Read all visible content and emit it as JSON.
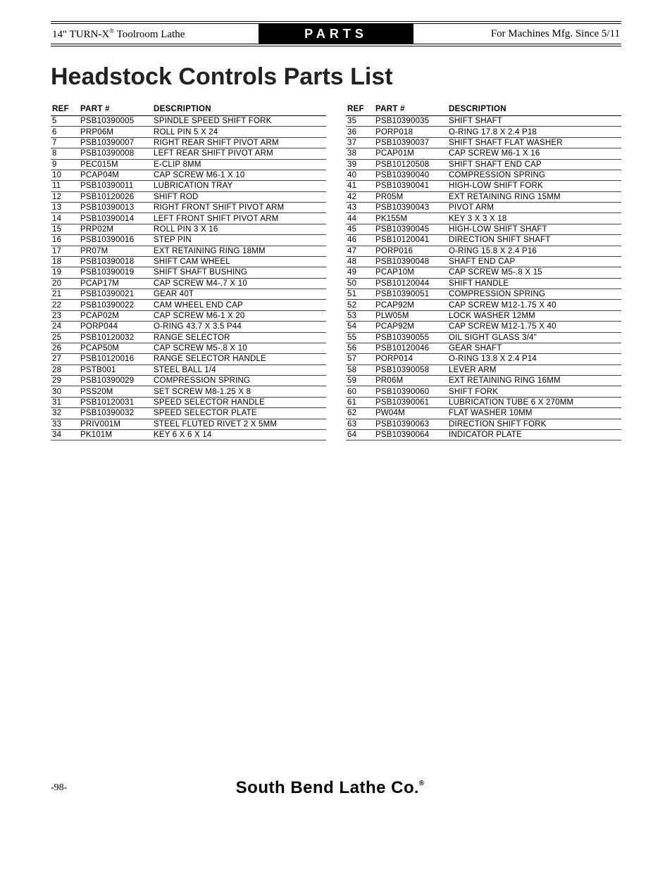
{
  "header": {
    "left_html": "14\" TURN-X<sup>®</sup> Toolroom Lathe",
    "center": "PARTS",
    "right": "For Machines Mfg. Since 5/11"
  },
  "title": "Headstock Controls Parts List",
  "columns": {
    "ref": "REF",
    "part": "PART #",
    "desc": "DESCRIPTION"
  },
  "left_rows": [
    [
      "5",
      "PSB10390005",
      "SPINDLE SPEED SHIFT FORK"
    ],
    [
      "6",
      "PRP06M",
      "ROLL PIN 5 X 24"
    ],
    [
      "7",
      "PSB10390007",
      "RIGHT REAR SHIFT PIVOT ARM"
    ],
    [
      "8",
      "PSB10390008",
      "LEFT REAR SHIFT PIVOT ARM"
    ],
    [
      "9",
      "PEC015M",
      "E-CLIP 8MM"
    ],
    [
      "10",
      "PCAP04M",
      "CAP SCREW M6-1 X 10"
    ],
    [
      "11",
      "PSB10390011",
      "LUBRICATION TRAY"
    ],
    [
      "12",
      "PSB10120026",
      "SHIFT ROD"
    ],
    [
      "13",
      "PSB10390013",
      "RIGHT FRONT SHIFT PIVOT ARM"
    ],
    [
      "14",
      "PSB10390014",
      "LEFT FRONT SHIFT PIVOT ARM"
    ],
    [
      "15",
      "PRP02M",
      "ROLL PIN 3 X 16"
    ],
    [
      "16",
      "PSB10390016",
      "STEP PIN"
    ],
    [
      "17",
      "PR07M",
      "EXT RETAINING RING 18MM"
    ],
    [
      "18",
      "PSB10390018",
      "SHIFT CAM WHEEL"
    ],
    [
      "19",
      "PSB10390019",
      "SHIFT SHAFT BUSHING"
    ],
    [
      "20",
      "PCAP17M",
      "CAP SCREW M4-.7 X 10"
    ],
    [
      "21",
      "PSB10390021",
      "GEAR 40T"
    ],
    [
      "22",
      "PSB10390022",
      "CAM WHEEL END CAP"
    ],
    [
      "23",
      "PCAP02M",
      "CAP SCREW M6-1 X 20"
    ],
    [
      "24",
      "PORP044",
      "O-RING 43.7 X 3.5 P44"
    ],
    [
      "25",
      "PSB10120032",
      "RANGE SELECTOR"
    ],
    [
      "26",
      "PCAP50M",
      "CAP SCREW M5-.8 X 10"
    ],
    [
      "27",
      "PSB10120016",
      "RANGE SELECTOR HANDLE"
    ],
    [
      "28",
      "PSTB001",
      "STEEL BALL 1/4"
    ],
    [
      "29",
      "PSB10390029",
      "COMPRESSION SPRING"
    ],
    [
      "30",
      "PSS20M",
      "SET SCREW M8-1.25 X 8"
    ],
    [
      "31",
      "PSB10120031",
      "SPEED SELECTOR HANDLE"
    ],
    [
      "32",
      "PSB10390032",
      "SPEED SELECTOR PLATE"
    ],
    [
      "33",
      "PRIV001M",
      "STEEL FLUTED RIVET 2 X 5MM"
    ],
    [
      "34",
      "PK101M",
      "KEY 6 X 6 X 14"
    ]
  ],
  "right_rows": [
    [
      "35",
      "PSB10390035",
      "SHIFT SHAFT"
    ],
    [
      "36",
      "PORP018",
      "O-RING 17.8 X 2.4 P18"
    ],
    [
      "37",
      "PSB10390037",
      "SHIFT SHAFT FLAT WASHER"
    ],
    [
      "38",
      "PCAP01M",
      "CAP SCREW M6-1 X 16"
    ],
    [
      "39",
      "PSB10120508",
      "SHIFT SHAFT END CAP"
    ],
    [
      "40",
      "PSB10390040",
      "COMPRESSION SPRING"
    ],
    [
      "41",
      "PSB10390041",
      "HIGH-LOW SHIFT FORK"
    ],
    [
      "42",
      "PR05M",
      "EXT RETAINING RING 15MM"
    ],
    [
      "43",
      "PSB10390043",
      "PIVOT ARM"
    ],
    [
      "44",
      "PK155M",
      "KEY 3 X 3 X 18"
    ],
    [
      "45",
      "PSB10390045",
      "HIGH-LOW SHIFT SHAFT"
    ],
    [
      "46",
      "PSB10120041",
      "DIRECTION SHIFT SHAFT"
    ],
    [
      "47",
      "PORP016",
      "O-RING 15.8 X 2.4 P16"
    ],
    [
      "48",
      "PSB10390048",
      "SHAFT END CAP"
    ],
    [
      "49",
      "PCAP10M",
      "CAP SCREW M5-.8 X 15"
    ],
    [
      "50",
      "PSB10120044",
      "SHIFT HANDLE"
    ],
    [
      "51",
      "PSB10390051",
      "COMPRESSION SPRING"
    ],
    [
      "52",
      "PCAP92M",
      "CAP SCREW M12-1.75 X 40"
    ],
    [
      "53",
      "PLW05M",
      "LOCK WASHER 12MM"
    ],
    [
      "54",
      "PCAP92M",
      "CAP SCREW M12-1.75 X 40"
    ],
    [
      "55",
      "PSB10390055",
      "OIL SIGHT GLASS 3/4\""
    ],
    [
      "56",
      "PSB10120046",
      "GEAR SHAFT"
    ],
    [
      "57",
      "PORP014",
      "O-RING 13.8 X 2.4 P14"
    ],
    [
      "58",
      "PSB10390058",
      "LEVER ARM"
    ],
    [
      "59",
      "PR06M",
      "EXT RETAINING RING 16MM"
    ],
    [
      "60",
      "PSB10390060",
      "SHIFT FORK"
    ],
    [
      "61",
      "PSB10390061",
      "LUBRICATION TUBE 6 X 270MM"
    ],
    [
      "62",
      "PW04M",
      "FLAT WASHER 10MM"
    ],
    [
      "63",
      "PSB10390063",
      "DIRECTION SHIFT FORK"
    ],
    [
      "64",
      "PSB10390064",
      "INDICATOR PLATE"
    ]
  ],
  "footer": {
    "page": "-98-",
    "brand_html": "South Bend Lathe Co<span style='font-size:22px'>.</span><span class='reg'>®</span>"
  }
}
